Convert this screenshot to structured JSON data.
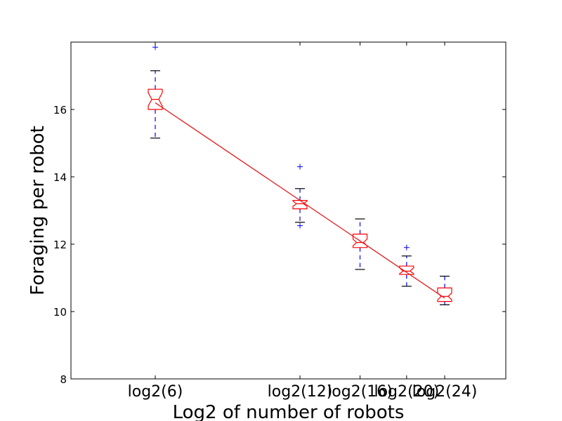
{
  "chart_data": {
    "type": "box",
    "title": "",
    "xlabel": "Log2 of number of robots",
    "ylabel": "Foraging per robot",
    "ylim": [
      8,
      18
    ],
    "y_ticks": [
      8,
      10,
      12,
      14,
      16
    ],
    "grid": false,
    "x_ticks": [
      {
        "value": 6,
        "label": "log2(6)"
      },
      {
        "value": 12,
        "label": "log2(12)"
      },
      {
        "value": 16,
        "label": "log2(16)"
      },
      {
        "value": 20,
        "label": "log2(20)"
      },
      {
        "value": 24,
        "label": "log2(24)"
      }
    ],
    "boxes": [
      {
        "category": "log2(6)",
        "n": 6,
        "whisker_low": 15.15,
        "q1": 16.0,
        "median": 16.3,
        "q3": 16.6,
        "whisker_high": 17.15,
        "notch_low": 16.1,
        "notch_high": 16.5,
        "outliers": [
          17.85
        ]
      },
      {
        "category": "log2(12)",
        "n": 12,
        "whisker_low": 12.65,
        "q1": 13.05,
        "median": 13.2,
        "q3": 13.3,
        "whisker_high": 13.65,
        "notch_low": 13.12,
        "notch_high": 13.28,
        "outliers": [
          12.55,
          14.3
        ]
      },
      {
        "category": "log2(16)",
        "n": 16,
        "whisker_low": 11.25,
        "q1": 11.9,
        "median": 12.05,
        "q3": 12.3,
        "whisker_high": 12.75,
        "notch_low": 11.95,
        "notch_high": 12.15,
        "outliers": []
      },
      {
        "category": "log2(20)",
        "n": 20,
        "whisker_low": 10.75,
        "q1": 11.1,
        "median": 11.2,
        "q3": 11.35,
        "whisker_high": 11.65,
        "notch_low": 11.12,
        "notch_high": 11.3,
        "outliers": [
          11.9
        ]
      },
      {
        "category": "log2(24)",
        "n": 24,
        "whisker_low": 10.2,
        "q1": 10.3,
        "median": 10.45,
        "q3": 10.7,
        "whisker_high": 11.05,
        "notch_low": 10.35,
        "notch_high": 10.55,
        "outliers": []
      }
    ],
    "fit_line": {
      "x": [
        6,
        24
      ],
      "y": [
        16.2,
        10.4
      ]
    },
    "colors": {
      "box": "#ff0000",
      "whisker": "#0000ff",
      "cap": "#000000",
      "fit": "#e31a1c",
      "outlier": "#0000ff"
    }
  }
}
